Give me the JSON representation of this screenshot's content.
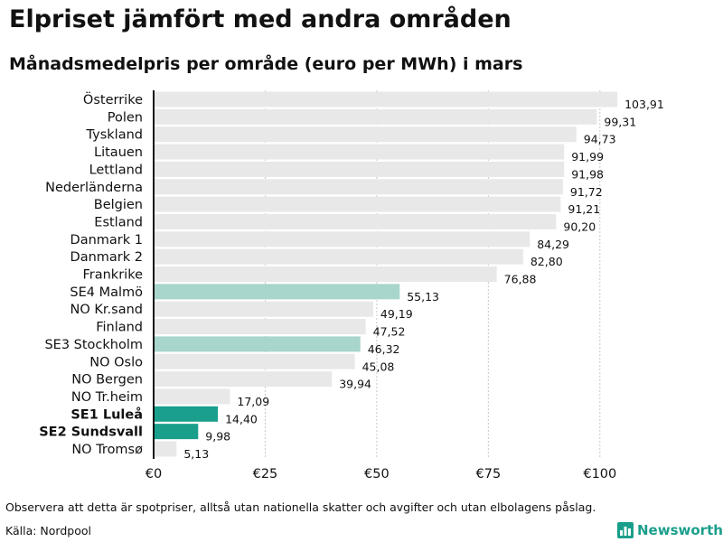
{
  "header": {
    "title": "Elpriset jämfört med andra områden",
    "subtitle": "Månadsmedelpris per område (euro per MWh) i mars"
  },
  "chart_data": {
    "type": "bar",
    "orientation": "horizontal",
    "title": "Elpriset jämfört med andra områden",
    "subtitle": "Månadsmedelpris per område (euro per MWh) i mars",
    "xlabel": "",
    "ylabel": "",
    "xlim": [
      0,
      105
    ],
    "grid": true,
    "ticks": [
      {
        "value": 0,
        "label": "€0"
      },
      {
        "value": 25,
        "label": "€25"
      },
      {
        "value": 50,
        "label": "€50"
      },
      {
        "value": 75,
        "label": "€75"
      },
      {
        "value": 100,
        "label": "€100"
      }
    ],
    "categories": [
      {
        "label": "Österrike",
        "value": 103.91,
        "display": "103,91",
        "highlight": "none"
      },
      {
        "label": "Polen",
        "value": 99.31,
        "display": "99,31",
        "highlight": "none"
      },
      {
        "label": "Tyskland",
        "value": 94.73,
        "display": "94,73",
        "highlight": "none"
      },
      {
        "label": "Litauen",
        "value": 91.99,
        "display": "91,99",
        "highlight": "none"
      },
      {
        "label": "Lettland",
        "value": 91.98,
        "display": "91,98",
        "highlight": "none"
      },
      {
        "label": "Nederländerna",
        "value": 91.72,
        "display": "91,72",
        "highlight": "none"
      },
      {
        "label": "Belgien",
        "value": 91.21,
        "display": "91,21",
        "highlight": "none"
      },
      {
        "label": "Estland",
        "value": 90.2,
        "display": "90,20",
        "highlight": "none"
      },
      {
        "label": "Danmark 1",
        "value": 84.29,
        "display": "84,29",
        "highlight": "none"
      },
      {
        "label": "Danmark 2",
        "value": 82.8,
        "display": "82,80",
        "highlight": "none"
      },
      {
        "label": "Frankrike",
        "value": 76.88,
        "display": "76,88",
        "highlight": "none"
      },
      {
        "label": "SE4 Malmö",
        "value": 55.13,
        "display": "55,13",
        "highlight": "light"
      },
      {
        "label": "NO Kr.sand",
        "value": 49.19,
        "display": "49,19",
        "highlight": "none"
      },
      {
        "label": "Finland",
        "value": 47.52,
        "display": "47,52",
        "highlight": "none"
      },
      {
        "label": "SE3 Stockholm",
        "value": 46.32,
        "display": "46,32",
        "highlight": "light"
      },
      {
        "label": "NO Oslo",
        "value": 45.08,
        "display": "45,08",
        "highlight": "none"
      },
      {
        "label": "NO Bergen",
        "value": 39.94,
        "display": "39,94",
        "highlight": "none"
      },
      {
        "label": "NO Tr.heim",
        "value": 17.09,
        "display": "17,09",
        "highlight": "none"
      },
      {
        "label": "SE1 Luleå",
        "value": 14.4,
        "display": "14,40",
        "highlight": "strong"
      },
      {
        "label": "SE2 Sundsvall",
        "value": 9.98,
        "display": "9,98",
        "highlight": "strong"
      },
      {
        "label": "NO Tromsø",
        "value": 5.13,
        "display": "5,13",
        "highlight": "none"
      }
    ],
    "colors": {
      "none": "#e8e8e8",
      "light": "#a8d5cc",
      "strong": "#1a9f8c",
      "grid": "#c8c8c8",
      "axis": "#111111"
    }
  },
  "footer": {
    "note": "Observera att detta är spotpriser, alltså utan nationella skatter och avgifter och utan elbolagens påslag.",
    "source": "Källa: Nordpool",
    "brand": "Newsworthy",
    "brand_icon": "bar-chart-icon"
  }
}
